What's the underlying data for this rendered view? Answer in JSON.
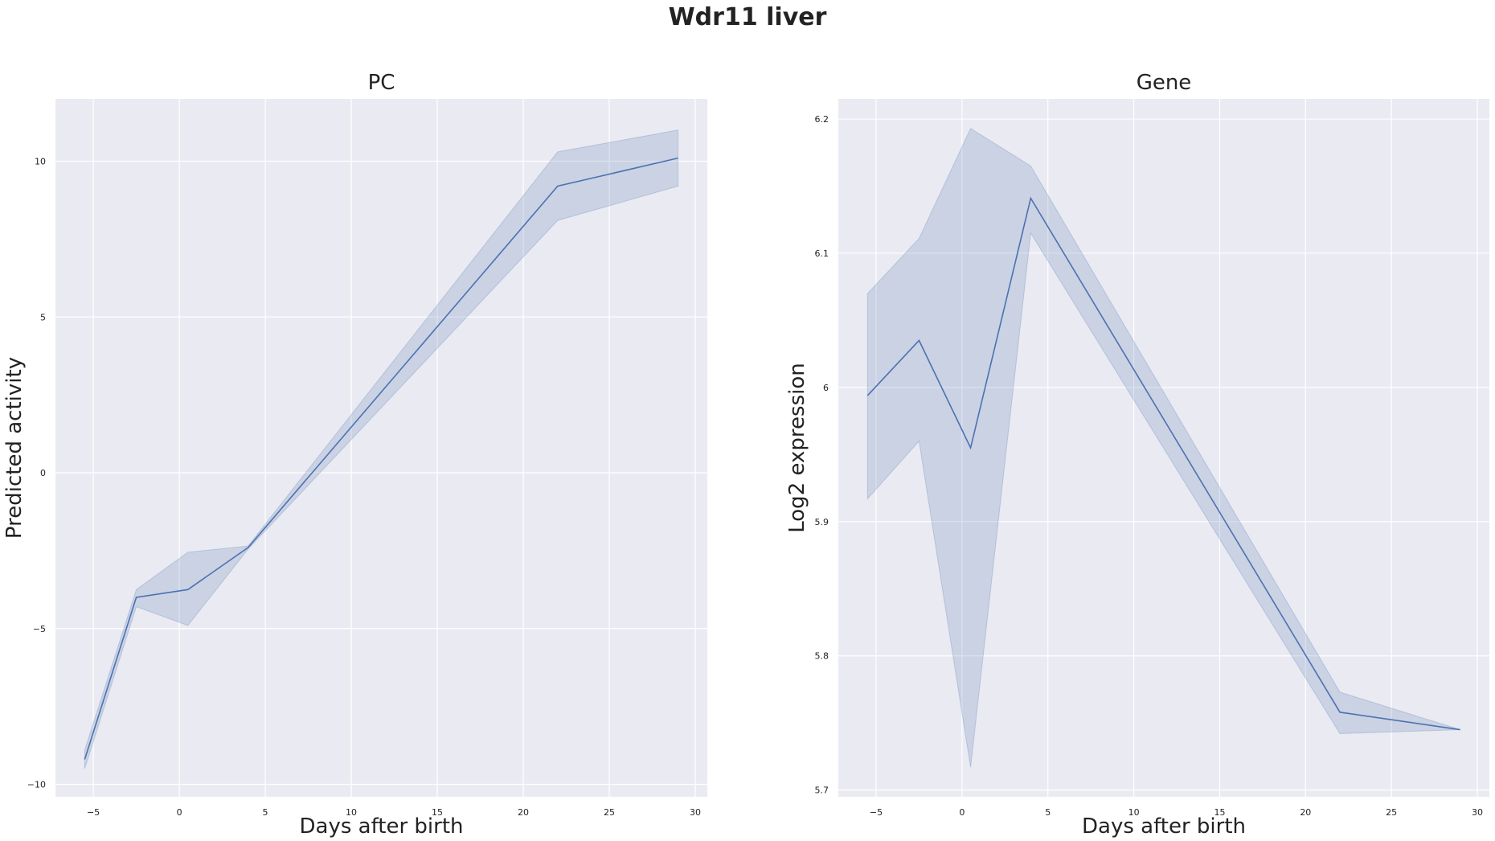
{
  "figure": {
    "suptitle": "Wdr11 liver"
  },
  "colors": {
    "axes_bg": "#EAEAF2",
    "grid": "#FFFFFF",
    "line": "#4C72B0",
    "band": "#4C72B0"
  },
  "chart_data": [
    {
      "type": "line",
      "title": "PC",
      "xlabel": "Days after birth",
      "ylabel": "Predicted activity",
      "xlim": [
        -7.2,
        30.7
      ],
      "ylim": [
        -10.4,
        12.0
      ],
      "xticks": [
        -5,
        0,
        5,
        10,
        15,
        20,
        25,
        30
      ],
      "yticks": [
        -10,
        -5,
        0,
        5,
        10
      ],
      "grid": true,
      "series": [
        {
          "x": [
            -5.5,
            -2.5,
            0.5,
            4,
            22,
            29
          ],
          "y": [
            -9.2,
            -4.0,
            -3.75,
            -2.4,
            9.2,
            10.1
          ],
          "ci_lower": [
            -9.5,
            -4.3,
            -4.9,
            -2.45,
            8.1,
            9.2
          ],
          "ci_upper": [
            -8.9,
            -3.75,
            -2.55,
            -2.35,
            10.3,
            11.0
          ]
        }
      ]
    },
    {
      "type": "line",
      "title": "Gene",
      "xlabel": "Days after birth",
      "ylabel": "Log2 expression",
      "xlim": [
        -7.2,
        30.7
      ],
      "ylim": [
        5.695,
        6.215
      ],
      "xticks": [
        -5,
        0,
        5,
        10,
        15,
        20,
        25,
        30
      ],
      "yticks": [
        5.7,
        5.8,
        5.9,
        6.0,
        6.1,
        6.2
      ],
      "grid": true,
      "series": [
        {
          "x": [
            -5.5,
            -2.5,
            0.5,
            4,
            22,
            29
          ],
          "y": [
            5.994,
            6.035,
            5.955,
            6.141,
            5.758,
            5.745
          ],
          "ci_lower": [
            5.917,
            5.96,
            5.717,
            6.115,
            5.742,
            5.745
          ],
          "ci_upper": [
            6.07,
            6.111,
            6.193,
            6.165,
            5.773,
            5.745
          ]
        }
      ]
    }
  ]
}
